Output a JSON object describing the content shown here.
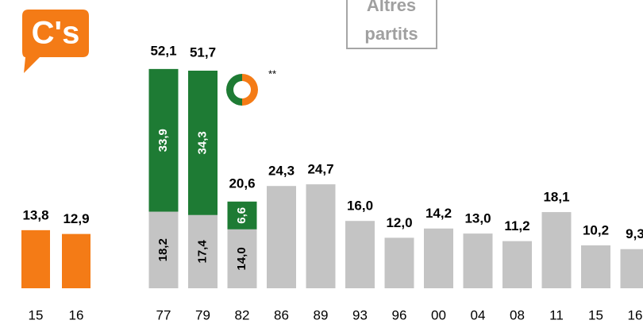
{
  "chart_data": [
    {
      "type": "bar",
      "logo": "C's",
      "logo_color": "#f47b16",
      "categories": [
        "15",
        "16"
      ],
      "values": [
        13.8,
        12.9
      ],
      "value_labels": [
        "13,8",
        "12,9"
      ],
      "color": "#f47b16"
    },
    {
      "type": "stacked_bar",
      "title": [
        "Altres",
        "partits"
      ],
      "annotation": "**",
      "categories": [
        "77",
        "79",
        "82",
        "86",
        "89",
        "93",
        "96",
        "00",
        "04",
        "08",
        "11",
        "15",
        "16"
      ],
      "series": [
        {
          "color": "#c4c4c4",
          "values": [
            18.2,
            17.4,
            14.0,
            24.3,
            24.7,
            16.0,
            12.0,
            14.2,
            13.0,
            11.2,
            18.1,
            10.2,
            9.3
          ],
          "value_labels": [
            "18,2",
            "17,4",
            "14,0",
            "24,3",
            "24,7",
            "16,0",
            "12,0",
            "14,2",
            "13,0",
            "11,2",
            "18,1",
            "10,2",
            "9,3"
          ]
        },
        {
          "color": "#1e7b34",
          "values": [
            33.9,
            34.3,
            6.6,
            null,
            null,
            null,
            null,
            null,
            null,
            null,
            null,
            null,
            null
          ],
          "value_labels": [
            "33,9",
            "34,3",
            "6,6",
            null,
            null,
            null,
            null,
            null,
            null,
            null,
            null,
            null,
            null
          ]
        }
      ],
      "totals": [
        52.1,
        51.7,
        20.6,
        null,
        null,
        null,
        null,
        null,
        null,
        null,
        null,
        null,
        null
      ],
      "total_labels": [
        "52,1",
        "51,7",
        "20,6",
        null,
        null,
        null,
        null,
        null,
        null,
        null,
        null,
        null,
        null
      ]
    }
  ]
}
